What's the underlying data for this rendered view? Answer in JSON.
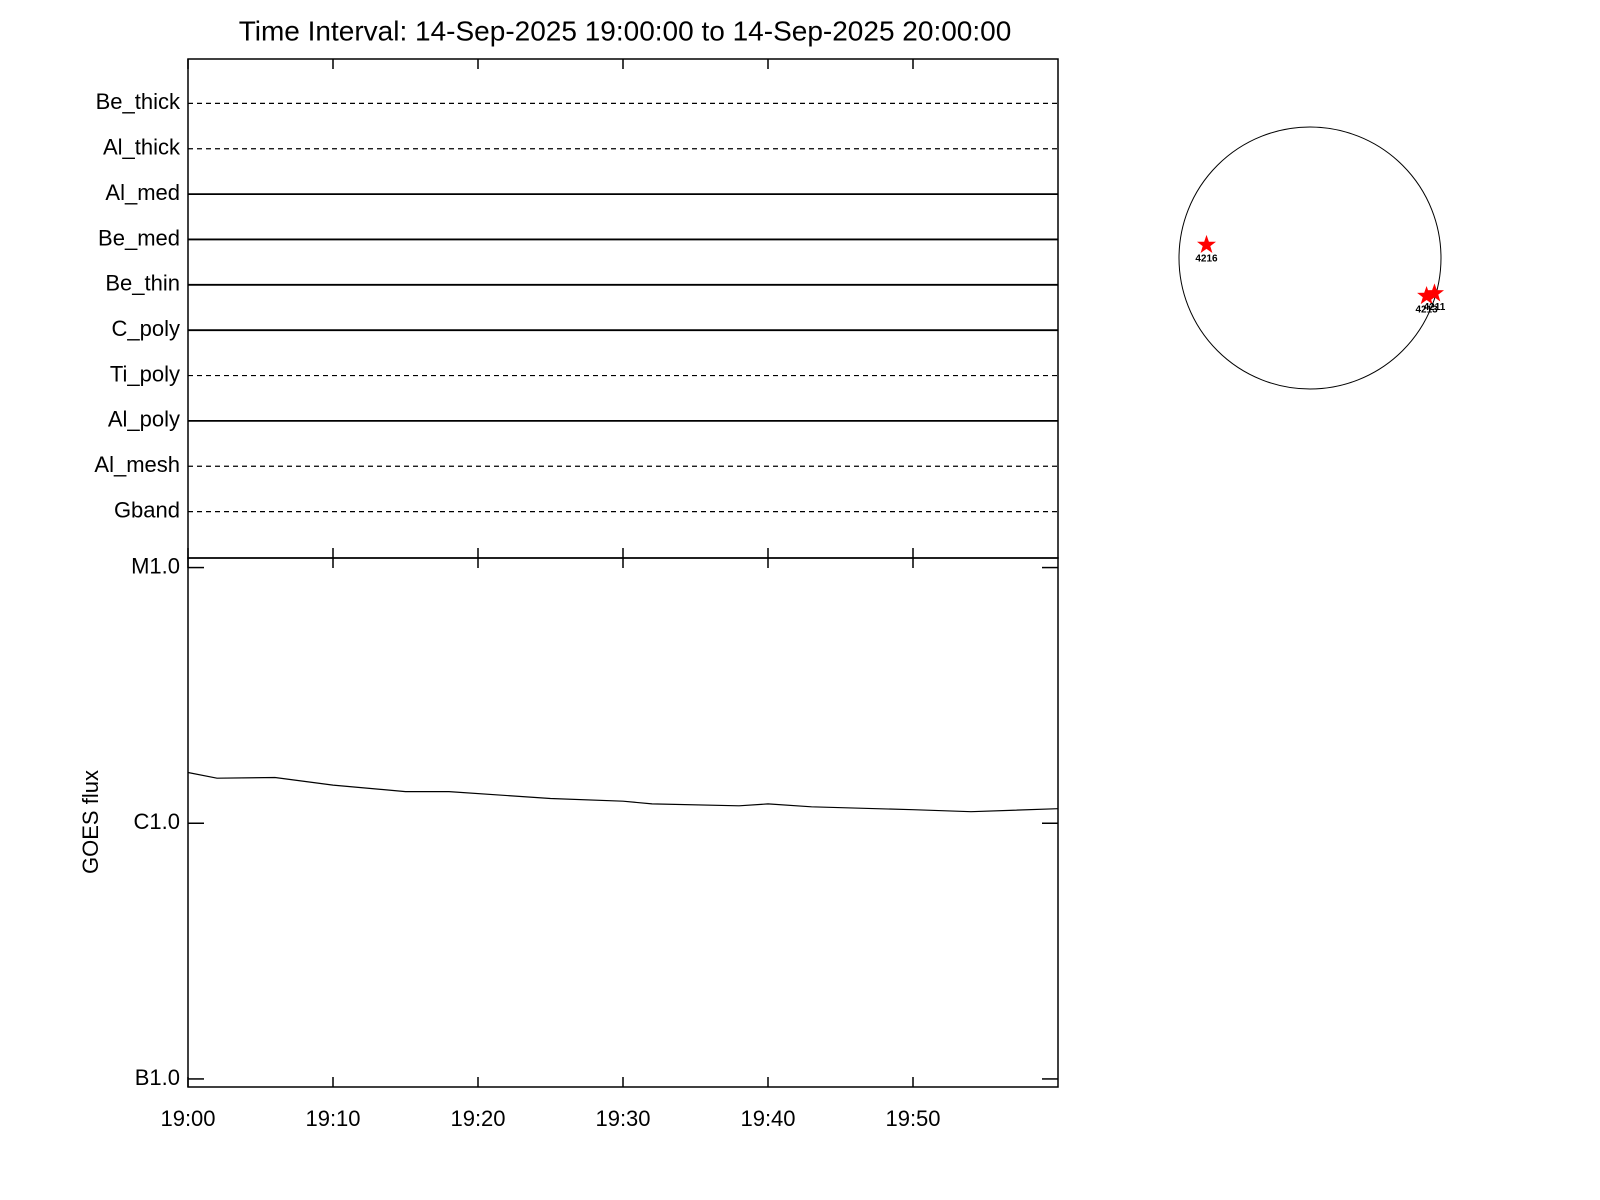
{
  "chart_data": [
    {
      "type": "timeline",
      "title": "Time Interval: 14-Sep-2025 19:00:00 to 14-Sep-2025 20:00:00",
      "categories": [
        "Be_thick",
        "Al_thick",
        "Al_med",
        "Be_med",
        "Be_thin",
        "C_poly",
        "Ti_poly",
        "Al_poly",
        "Al_mesh",
        "Gband"
      ],
      "line_styles": [
        "dashed",
        "dashed",
        "solid",
        "solid",
        "solid",
        "solid",
        "dashed",
        "solid",
        "dashed",
        "dashed"
      ]
    },
    {
      "type": "line",
      "ylabel": "GOES flux",
      "x": [
        "19:00",
        "19:02",
        "19:06",
        "19:10",
        "19:15",
        "19:18",
        "19:25",
        "19:30",
        "19:32",
        "19:38",
        "19:40",
        "19:43",
        "19:50",
        "19:54",
        "20:00"
      ],
      "values": [
        1.58e-06,
        1.5e-06,
        1.51e-06,
        1.41e-06,
        1.33e-06,
        1.33e-06,
        1.25e-06,
        1.22e-06,
        1.19e-06,
        1.17e-06,
        1.19e-06,
        1.16e-06,
        1.13e-06,
        1.11e-06,
        1.14e-06
      ],
      "color": "#000000",
      "log_scale": true,
      "xlim": [
        "19:00",
        "20:00"
      ],
      "xticks": [
        "19:00",
        "19:10",
        "19:20",
        "19:30",
        "19:40",
        "19:50"
      ],
      "ylim": [
        9.3e-08,
        1.09e-05
      ],
      "yticks": [
        {
          "value": 1e-07,
          "label": "B1.0"
        },
        {
          "value": 1e-06,
          "label": "C1.0"
        },
        {
          "value": 1e-05,
          "label": "M1.0"
        }
      ]
    },
    {
      "type": "disk",
      "color": "#ff0000",
      "xlim": [
        -1,
        1
      ],
      "ylim": [
        -1,
        1
      ],
      "points": [
        {
          "label": "4216",
          "x": -0.79,
          "y": 0.1
        },
        {
          "label": "4213",
          "x": 0.89,
          "y": -0.29
        },
        {
          "label": "4211",
          "x": 0.95,
          "y": -0.27
        }
      ]
    }
  ]
}
